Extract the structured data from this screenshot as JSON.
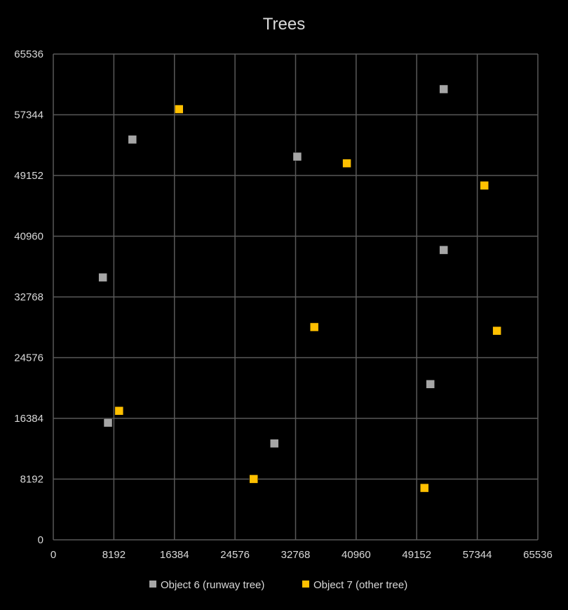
{
  "chart_data": {
    "type": "scatter",
    "title": "Trees",
    "xlabel": "",
    "ylabel": "",
    "xlim": [
      0,
      65536
    ],
    "ylim": [
      0,
      65536
    ],
    "xticks": [
      0,
      8192,
      16384,
      24576,
      32768,
      40960,
      49152,
      57344,
      65536
    ],
    "yticks": [
      0,
      8192,
      16384,
      24576,
      32768,
      40960,
      49152,
      57344,
      65536
    ],
    "grid": true,
    "legend_position": "bottom",
    "series": [
      {
        "name": "Object 6 (runway tree)",
        "color": "#a6a6a6",
        "marker": "square",
        "points": [
          {
            "x": 6700,
            "y": 35400
          },
          {
            "x": 7400,
            "y": 15800
          },
          {
            "x": 10700,
            "y": 54000
          },
          {
            "x": 29900,
            "y": 13000
          },
          {
            "x": 33000,
            "y": 51700
          },
          {
            "x": 51000,
            "y": 21000
          },
          {
            "x": 52800,
            "y": 39100
          },
          {
            "x": 52800,
            "y": 60800
          }
        ]
      },
      {
        "name": "Object 7 (other tree)",
        "color": "#ffc000",
        "marker": "square",
        "points": [
          {
            "x": 8900,
            "y": 17400
          },
          {
            "x": 17000,
            "y": 58100
          },
          {
            "x": 27100,
            "y": 8200
          },
          {
            "x": 35300,
            "y": 28700
          },
          {
            "x": 39700,
            "y": 50800
          },
          {
            "x": 50200,
            "y": 7000
          },
          {
            "x": 58300,
            "y": 47800
          },
          {
            "x": 60000,
            "y": 28200
          }
        ]
      }
    ]
  }
}
